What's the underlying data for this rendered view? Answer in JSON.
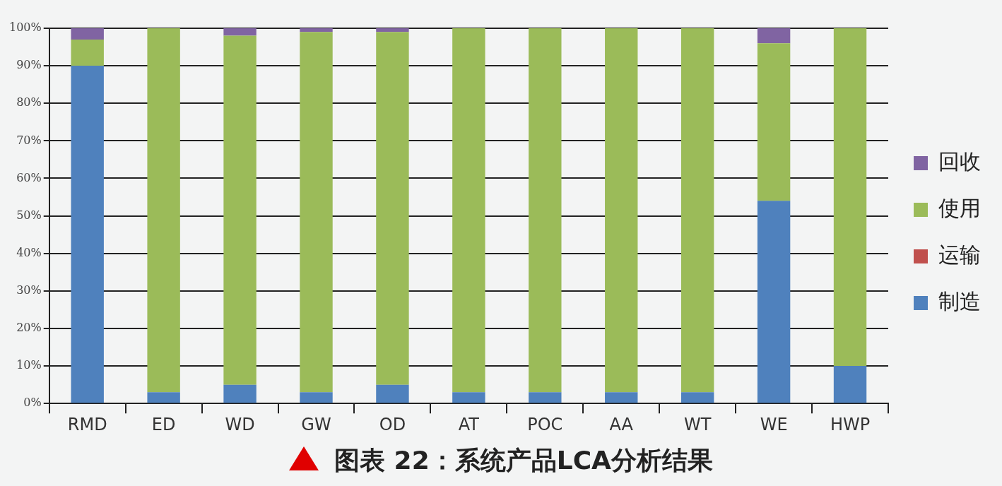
{
  "chart_data": {
    "type": "bar",
    "title": "图表 22：系统产品LCA分析结果",
    "categories": [
      "RMD",
      "ED",
      "WD",
      "GW",
      "OD",
      "AT",
      "POC",
      "AA",
      "WT",
      "WE",
      "HWP"
    ],
    "stacked": true,
    "series": [
      {
        "name": "制造",
        "color": "#4f81bd",
        "values": [
          90,
          3,
          5,
          3,
          5,
          3,
          3,
          3,
          3,
          54,
          10
        ]
      },
      {
        "name": "运输",
        "color": "#c0504d",
        "values": [
          0,
          0,
          0,
          0,
          0,
          0,
          0,
          0,
          0,
          0,
          0
        ]
      },
      {
        "name": "使用",
        "color": "#9bbb59",
        "values": [
          7,
          97,
          93,
          96,
          94,
          97,
          97,
          97,
          97,
          42,
          90
        ]
      },
      {
        "name": "回收",
        "color": "#8064a2",
        "values": [
          3,
          0,
          2,
          1,
          1,
          0,
          0,
          0,
          0,
          4,
          0
        ]
      }
    ],
    "ylim": [
      0,
      100
    ],
    "yticks": [
      {
        "value": 0,
        "label": "0%"
      },
      {
        "value": 10,
        "label": "10%"
      },
      {
        "value": 20,
        "label": "20%"
      },
      {
        "value": 30,
        "label": "30%"
      },
      {
        "value": 40,
        "label": "40%"
      },
      {
        "value": 50,
        "label": "50%"
      },
      {
        "value": 60,
        "label": "60%"
      },
      {
        "value": 70,
        "label": "70%"
      },
      {
        "value": 80,
        "label": "80%"
      },
      {
        "value": 90,
        "label": "90%"
      },
      {
        "value": 100,
        "label": "100%"
      }
    ],
    "grid": "y",
    "legend": "right"
  }
}
